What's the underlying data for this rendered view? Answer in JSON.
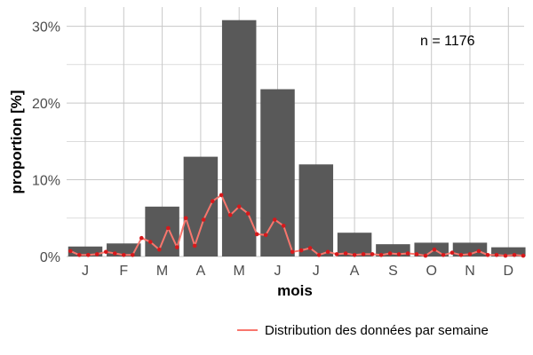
{
  "chart_data": {
    "type": "bar",
    "xlabel": "mois",
    "ylabel": "proportion [%]",
    "ylim": [
      0,
      32.5
    ],
    "yticks": [
      0,
      10,
      20,
      30
    ],
    "ytick_labels": [
      "0%",
      "10%",
      "20%",
      "30%"
    ],
    "grid": true,
    "annotation": "n = 1176",
    "categories": [
      "J",
      "F",
      "M",
      "A",
      "M",
      "J",
      "J",
      "A",
      "S",
      "O",
      "N",
      "D"
    ],
    "values": [
      1.3,
      1.7,
      6.5,
      13.0,
      30.8,
      21.8,
      12.0,
      3.1,
      1.6,
      1.8,
      1.8,
      1.2
    ],
    "line_series": {
      "name": "Distribution des données par semaine",
      "x_weeks": [
        1,
        2,
        3,
        4,
        5,
        6,
        7,
        8,
        9,
        10,
        11,
        12,
        13,
        14,
        15,
        16,
        17,
        18,
        19,
        20,
        21,
        22,
        23,
        24,
        25,
        26,
        27,
        28,
        29,
        30,
        31,
        32,
        33,
        34,
        35,
        36,
        37,
        38,
        39,
        40,
        41,
        42,
        43,
        44,
        45,
        46,
        47,
        48,
        49,
        50,
        51,
        52
      ],
      "values": [
        0.7,
        0.2,
        0.2,
        0.3,
        0.6,
        0.4,
        0.2,
        0.2,
        2.4,
        1.9,
        0.9,
        3.7,
        1.2,
        5.0,
        1.4,
        4.8,
        7.2,
        8.0,
        5.4,
        6.5,
        5.6,
        2.9,
        2.8,
        4.8,
        4.0,
        0.6,
        0.8,
        1.1,
        0.2,
        0.6,
        0.3,
        0.4,
        0.2,
        0.3,
        0.3,
        0.2,
        0.4,
        0.3,
        0.4,
        0.3,
        0.1,
        0.9,
        0.2,
        0.5,
        0.2,
        0.3,
        0.7,
        0.2,
        0.2,
        0.1,
        0.2,
        0.1
      ]
    },
    "legend_position": "bottom-right"
  },
  "colors": {
    "bar": "#595959",
    "line": "#f8766d",
    "point": "#d7191c",
    "grid": "#c8c8c8"
  }
}
